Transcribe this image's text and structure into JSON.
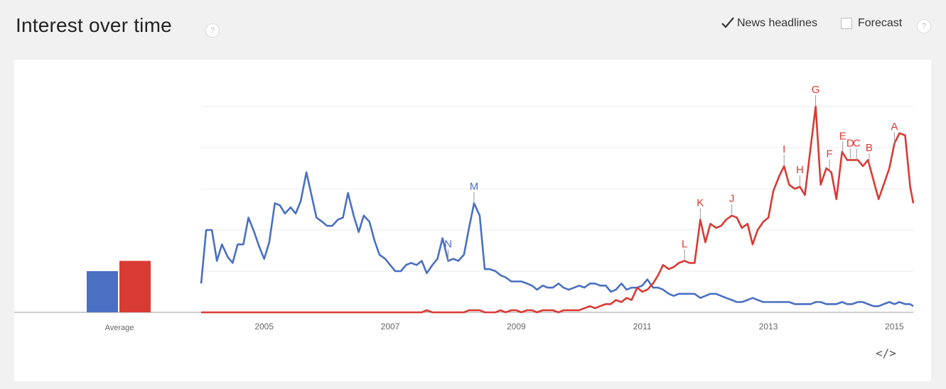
{
  "header": {
    "title": "Interest over time",
    "help_glyph": "?",
    "news_label": "News headlines",
    "news_checked": true,
    "forecast_label": "Forecast",
    "forecast_checked": false
  },
  "embed_glyph": "</>",
  "colors": {
    "blue": "#4a6fc3",
    "red": "#d93a33",
    "grid": "#ebebeb",
    "axis": "#666"
  },
  "chart_data": {
    "type": "line",
    "title": "",
    "xlabel": "",
    "ylabel": "",
    "xlim": [
      2004.0,
      2015.3
    ],
    "ylim": [
      0,
      100
    ],
    "grid": true,
    "x_ticks": [
      2005,
      2007,
      2009,
      2011,
      2013,
      2015
    ],
    "x_tick_labels": [
      "2005",
      "2007",
      "2009",
      "2011",
      "2013",
      "2015"
    ],
    "average": {
      "label": "Average",
      "values": [
        20,
        25
      ]
    },
    "series": [
      {
        "color": "#4a6fc3",
        "points": [
          [
            2004.0,
            14
          ],
          [
            2004.08,
            40
          ],
          [
            2004.17,
            40
          ],
          [
            2004.25,
            25
          ],
          [
            2004.33,
            33
          ],
          [
            2004.42,
            27
          ],
          [
            2004.5,
            24
          ],
          [
            2004.58,
            33
          ],
          [
            2004.67,
            33
          ],
          [
            2004.75,
            46
          ],
          [
            2004.83,
            40
          ],
          [
            2004.92,
            32
          ],
          [
            2005.0,
            26
          ],
          [
            2005.08,
            34
          ],
          [
            2005.17,
            53
          ],
          [
            2005.25,
            52
          ],
          [
            2005.33,
            48
          ],
          [
            2005.42,
            51
          ],
          [
            2005.5,
            48
          ],
          [
            2005.58,
            54
          ],
          [
            2005.67,
            68
          ],
          [
            2005.75,
            57
          ],
          [
            2005.83,
            46
          ],
          [
            2005.92,
            44
          ],
          [
            2006.0,
            42
          ],
          [
            2006.08,
            42
          ],
          [
            2006.17,
            45
          ],
          [
            2006.25,
            46
          ],
          [
            2006.33,
            58
          ],
          [
            2006.42,
            47
          ],
          [
            2006.5,
            39
          ],
          [
            2006.58,
            47
          ],
          [
            2006.67,
            44
          ],
          [
            2006.75,
            35
          ],
          [
            2006.83,
            28
          ],
          [
            2006.92,
            26
          ],
          [
            2007.0,
            23
          ],
          [
            2007.08,
            20
          ],
          [
            2007.17,
            20
          ],
          [
            2007.25,
            23
          ],
          [
            2007.33,
            24
          ],
          [
            2007.42,
            23
          ],
          [
            2007.5,
            25
          ],
          [
            2007.58,
            19
          ],
          [
            2007.67,
            23
          ],
          [
            2007.75,
            26
          ],
          [
            2007.83,
            36
          ],
          [
            2007.92,
            25
          ],
          [
            2008.0,
            26
          ],
          [
            2008.08,
            25
          ],
          [
            2008.17,
            28
          ],
          [
            2008.25,
            41
          ],
          [
            2008.33,
            53
          ],
          [
            2008.42,
            47
          ],
          [
            2008.5,
            21
          ],
          [
            2008.58,
            21
          ],
          [
            2008.67,
            20
          ],
          [
            2008.75,
            18
          ],
          [
            2008.83,
            17
          ],
          [
            2008.92,
            15
          ],
          [
            2009.0,
            15
          ],
          [
            2009.08,
            15
          ],
          [
            2009.17,
            14
          ],
          [
            2009.25,
            13
          ],
          [
            2009.33,
            11
          ],
          [
            2009.42,
            13
          ],
          [
            2009.5,
            12
          ],
          [
            2009.58,
            12
          ],
          [
            2009.67,
            14
          ],
          [
            2009.75,
            12
          ],
          [
            2009.83,
            11
          ],
          [
            2009.92,
            12
          ],
          [
            2010.0,
            13
          ],
          [
            2010.08,
            12
          ],
          [
            2010.17,
            14
          ],
          [
            2010.25,
            14
          ],
          [
            2010.33,
            13
          ],
          [
            2010.42,
            13
          ],
          [
            2010.5,
            10
          ],
          [
            2010.58,
            11
          ],
          [
            2010.67,
            14
          ],
          [
            2010.75,
            11
          ],
          [
            2010.83,
            12
          ],
          [
            2010.92,
            12
          ],
          [
            2011.0,
            13
          ],
          [
            2011.08,
            16
          ],
          [
            2011.17,
            12
          ],
          [
            2011.25,
            12
          ],
          [
            2011.33,
            11
          ],
          [
            2011.42,
            9
          ],
          [
            2011.5,
            8
          ],
          [
            2011.58,
            9
          ],
          [
            2011.67,
            9
          ],
          [
            2011.75,
            9
          ],
          [
            2011.83,
            9
          ],
          [
            2011.92,
            7
          ],
          [
            2012.0,
            8
          ],
          [
            2012.08,
            9
          ],
          [
            2012.17,
            9
          ],
          [
            2012.25,
            8
          ],
          [
            2012.33,
            7
          ],
          [
            2012.42,
            6
          ],
          [
            2012.5,
            5
          ],
          [
            2012.58,
            5
          ],
          [
            2012.67,
            6
          ],
          [
            2012.75,
            7
          ],
          [
            2012.83,
            6
          ],
          [
            2012.92,
            5
          ],
          [
            2013.0,
            5
          ],
          [
            2013.08,
            5
          ],
          [
            2013.17,
            5
          ],
          [
            2013.25,
            5
          ],
          [
            2013.33,
            5
          ],
          [
            2013.42,
            4
          ],
          [
            2013.5,
            4
          ],
          [
            2013.58,
            4
          ],
          [
            2013.67,
            4
          ],
          [
            2013.75,
            5
          ],
          [
            2013.83,
            5
          ],
          [
            2013.92,
            4
          ],
          [
            2014.0,
            4
          ],
          [
            2014.08,
            4
          ],
          [
            2014.17,
            5
          ],
          [
            2014.25,
            4
          ],
          [
            2014.33,
            4
          ],
          [
            2014.42,
            5
          ],
          [
            2014.5,
            5
          ],
          [
            2014.58,
            4
          ],
          [
            2014.67,
            3
          ],
          [
            2014.75,
            3
          ],
          [
            2014.83,
            4
          ],
          [
            2014.92,
            5
          ],
          [
            2015.0,
            4
          ],
          [
            2015.08,
            5
          ],
          [
            2015.17,
            4
          ],
          [
            2015.25,
            4
          ],
          [
            2015.3,
            3
          ]
        ]
      },
      {
        "color": "#d93a33",
        "points": [
          [
            2004.0,
            0
          ],
          [
            2007.5,
            0
          ],
          [
            2007.58,
            1
          ],
          [
            2007.67,
            0
          ],
          [
            2008.17,
            0
          ],
          [
            2008.25,
            1
          ],
          [
            2008.42,
            1
          ],
          [
            2008.5,
            0
          ],
          [
            2008.67,
            0
          ],
          [
            2008.75,
            1
          ],
          [
            2008.83,
            0
          ],
          [
            2008.92,
            1
          ],
          [
            2009.0,
            1
          ],
          [
            2009.08,
            0
          ],
          [
            2009.17,
            1
          ],
          [
            2009.25,
            1
          ],
          [
            2009.33,
            0
          ],
          [
            2009.42,
            1
          ],
          [
            2009.5,
            1
          ],
          [
            2009.58,
            1
          ],
          [
            2009.67,
            0
          ],
          [
            2009.75,
            1
          ],
          [
            2009.83,
            1
          ],
          [
            2009.92,
            1
          ],
          [
            2010.0,
            1
          ],
          [
            2010.08,
            2
          ],
          [
            2010.17,
            3
          ],
          [
            2010.25,
            2
          ],
          [
            2010.33,
            3
          ],
          [
            2010.42,
            4
          ],
          [
            2010.5,
            4
          ],
          [
            2010.58,
            6
          ],
          [
            2010.67,
            5
          ],
          [
            2010.75,
            7
          ],
          [
            2010.83,
            6
          ],
          [
            2010.92,
            12
          ],
          [
            2011.0,
            10
          ],
          [
            2011.08,
            11
          ],
          [
            2011.17,
            14
          ],
          [
            2011.25,
            18
          ],
          [
            2011.33,
            23
          ],
          [
            2011.42,
            21
          ],
          [
            2011.5,
            22
          ],
          [
            2011.58,
            24
          ],
          [
            2011.67,
            25
          ],
          [
            2011.75,
            24
          ],
          [
            2011.83,
            24
          ],
          [
            2011.92,
            45
          ],
          [
            2012.0,
            34
          ],
          [
            2012.08,
            43
          ],
          [
            2012.17,
            41
          ],
          [
            2012.25,
            42
          ],
          [
            2012.33,
            45
          ],
          [
            2012.42,
            47
          ],
          [
            2012.5,
            46
          ],
          [
            2012.58,
            41
          ],
          [
            2012.67,
            43
          ],
          [
            2012.75,
            33
          ],
          [
            2012.83,
            40
          ],
          [
            2012.92,
            44
          ],
          [
            2013.0,
            46
          ],
          [
            2013.08,
            59
          ],
          [
            2013.17,
            66
          ],
          [
            2013.25,
            71
          ],
          [
            2013.33,
            62
          ],
          [
            2013.42,
            60
          ],
          [
            2013.5,
            61
          ],
          [
            2013.58,
            57
          ],
          [
            2013.67,
            80
          ],
          [
            2013.75,
            100
          ],
          [
            2013.83,
            62
          ],
          [
            2013.92,
            70
          ],
          [
            2014.0,
            68
          ],
          [
            2014.08,
            55
          ],
          [
            2014.17,
            78
          ],
          [
            2014.25,
            74
          ],
          [
            2014.33,
            74
          ],
          [
            2014.42,
            74
          ],
          [
            2014.5,
            71
          ],
          [
            2014.58,
            74
          ],
          [
            2014.67,
            64
          ],
          [
            2014.75,
            55
          ],
          [
            2014.83,
            62
          ],
          [
            2014.92,
            70
          ],
          [
            2015.0,
            82
          ],
          [
            2015.08,
            87
          ],
          [
            2015.17,
            86
          ],
          [
            2015.25,
            61
          ],
          [
            2015.3,
            53
          ]
        ]
      }
    ],
    "annotations": [
      {
        "label": "A",
        "x": 2015.0,
        "series": 1
      },
      {
        "label": "B",
        "x": 2014.6,
        "series": 1
      },
      {
        "label": "C",
        "x": 2014.4,
        "series": 1
      },
      {
        "label": "D",
        "x": 2014.3,
        "series": 1
      },
      {
        "label": "E",
        "x": 2014.18,
        "series": 1
      },
      {
        "label": "F",
        "x": 2013.97,
        "series": 1
      },
      {
        "label": "G",
        "x": 2013.75,
        "series": 1
      },
      {
        "label": "H",
        "x": 2013.5,
        "series": 1
      },
      {
        "label": "I",
        "x": 2013.25,
        "series": 1
      },
      {
        "label": "J",
        "x": 2012.42,
        "series": 1
      },
      {
        "label": "K",
        "x": 2011.92,
        "series": 1
      },
      {
        "label": "L",
        "x": 2011.67,
        "series": 1
      },
      {
        "label": "M",
        "x": 2008.33,
        "series": 0
      },
      {
        "label": "N",
        "x": 2007.92,
        "series": 0
      }
    ]
  }
}
